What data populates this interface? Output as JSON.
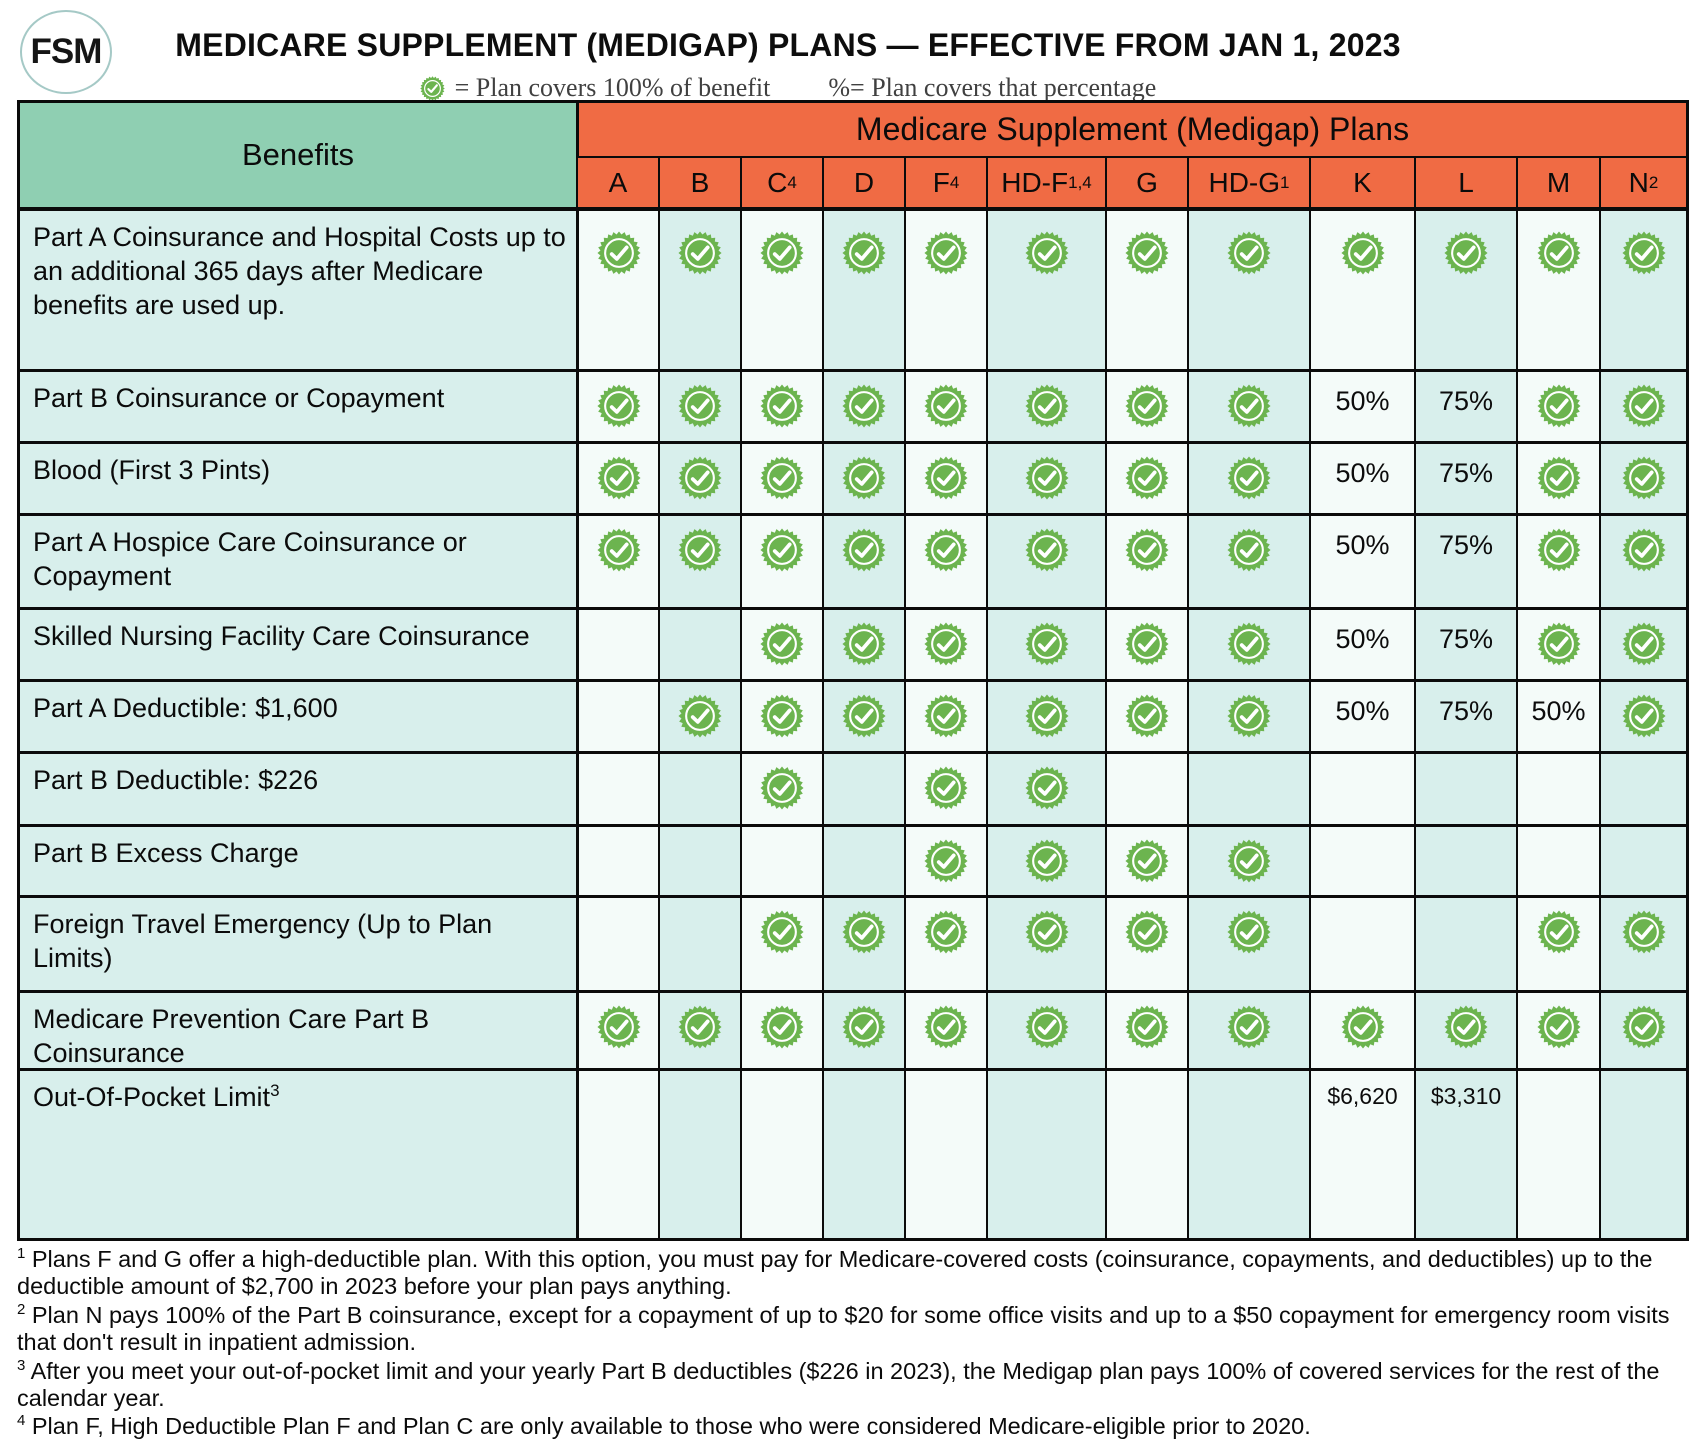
{
  "colors": {
    "header_orange": "#F06B44",
    "benefits_green": "#8FCFB2",
    "cell_teal": "#D8EFEC",
    "cell_white": "#F4FBF9",
    "check_green": "#6CB44F",
    "border_black": "#0b0b0b"
  },
  "header": {
    "logo_text": "FSM",
    "title": "MEDICARE SUPPLEMENT (MEDIGAP) PLANS — EFFECTIVE FROM JAN 1, 2023",
    "legend_check_label": "= Plan covers 100% of benefit",
    "legend_percent_label": "%= Plan covers that percentage"
  },
  "table": {
    "benefits_header": "Benefits",
    "plans_banner": "Medicare Supplement (Medigap) Plans",
    "check_icon_meaning": "check-badge-icon",
    "columns": [
      {
        "label": "A",
        "sup": ""
      },
      {
        "label": "B",
        "sup": ""
      },
      {
        "label": "C",
        "sup": "4"
      },
      {
        "label": "D",
        "sup": ""
      },
      {
        "label": "F",
        "sup": "4"
      },
      {
        "label": "HD-F",
        "sup": "1,4"
      },
      {
        "label": "G",
        "sup": ""
      },
      {
        "label": "HD-G",
        "sup": "1"
      },
      {
        "label": "K",
        "sup": ""
      },
      {
        "label": "L",
        "sup": ""
      },
      {
        "label": "M",
        "sup": ""
      },
      {
        "label": "N",
        "sup": "2"
      }
    ],
    "rows": [
      {
        "benefit": "Part A Coinsurance and Hospital Costs up to an additional 365 days after Medicare benefits are used up.",
        "sup": "",
        "cells": [
          "check",
          "check",
          "check",
          "check",
          "check",
          "check",
          "check",
          "check",
          "check",
          "check",
          "check",
          "check"
        ]
      },
      {
        "benefit": "Part B Coinsurance or Copayment",
        "sup": "",
        "cells": [
          "check",
          "check",
          "check",
          "check",
          "check",
          "check",
          "check",
          "check",
          "50%",
          "75%",
          "check",
          "check"
        ]
      },
      {
        "benefit": "Blood (First 3 Pints)",
        "sup": "",
        "cells": [
          "check",
          "check",
          "check",
          "check",
          "check",
          "check",
          "check",
          "check",
          "50%",
          "75%",
          "check",
          "check"
        ]
      },
      {
        "benefit": "Part A Hospice Care Coinsurance or Copayment",
        "sup": "",
        "cells": [
          "check",
          "check",
          "check",
          "check",
          "check",
          "check",
          "check",
          "check",
          "50%",
          "75%",
          "check",
          "check"
        ]
      },
      {
        "benefit": "Skilled Nursing Facility Care Coinsurance",
        "sup": "",
        "cells": [
          "",
          "",
          "check",
          "check",
          "check",
          "check",
          "check",
          "check",
          "50%",
          "75%",
          "check",
          "check"
        ]
      },
      {
        "benefit": "Part A Deductible: $1,600",
        "sup": "",
        "cells": [
          "",
          "check",
          "check",
          "check",
          "check",
          "check",
          "check",
          "check",
          "50%",
          "75%",
          "50%",
          "check"
        ]
      },
      {
        "benefit": "Part B Deductible: $226",
        "sup": "",
        "cells": [
          "",
          "",
          "check",
          "",
          "check",
          "check",
          "",
          "",
          "",
          "",
          "",
          ""
        ]
      },
      {
        "benefit": "Part B Excess Charge",
        "sup": "",
        "cells": [
          "",
          "",
          "",
          "",
          "check",
          "check",
          "check",
          "check",
          "",
          "",
          "",
          ""
        ]
      },
      {
        "benefit": "Foreign Travel Emergency (Up to Plan Limits)",
        "sup": "",
        "cells": [
          "",
          "",
          "check",
          "check",
          "check",
          "check",
          "check",
          "check",
          "",
          "",
          "check",
          "check"
        ]
      },
      {
        "benefit": "Medicare Prevention Care Part B Coinsurance",
        "sup": "",
        "cells": [
          "check",
          "check",
          "check",
          "check",
          "check",
          "check",
          "check",
          "check",
          "check",
          "check",
          "check",
          "check"
        ]
      },
      {
        "benefit": "Out-Of-Pocket Limit",
        "sup": "3",
        "cells": [
          "",
          "",
          "",
          "",
          "",
          "",
          "",
          "",
          "$6,620",
          "$3,310",
          "",
          ""
        ]
      }
    ]
  },
  "footnotes": [
    {
      "sup": "1",
      "text": "Plans F and G offer a high-deductible plan. With this option, you must pay for Medicare-covered costs (coinsurance, copayments, and deductibles) up to the deductible amount of $2,700 in 2023 before your plan pays anything."
    },
    {
      "sup": "2",
      "text": "Plan N pays 100% of the Part B coinsurance, except for a copayment of up to $20 for some office visits and up to a $50 copayment for emergency room visits that don't result in inpatient admission."
    },
    {
      "sup": "3",
      "text": "After you meet your out-of-pocket limit and your yearly Part B deductibles ($226 in 2023), the Medigap plan pays 100% of covered services for the rest of the calendar year."
    },
    {
      "sup": "4",
      "text": "Plan F, High Deductible Plan F and Plan C are only available to those who were considered Medicare-eligible prior to 2020."
    }
  ]
}
